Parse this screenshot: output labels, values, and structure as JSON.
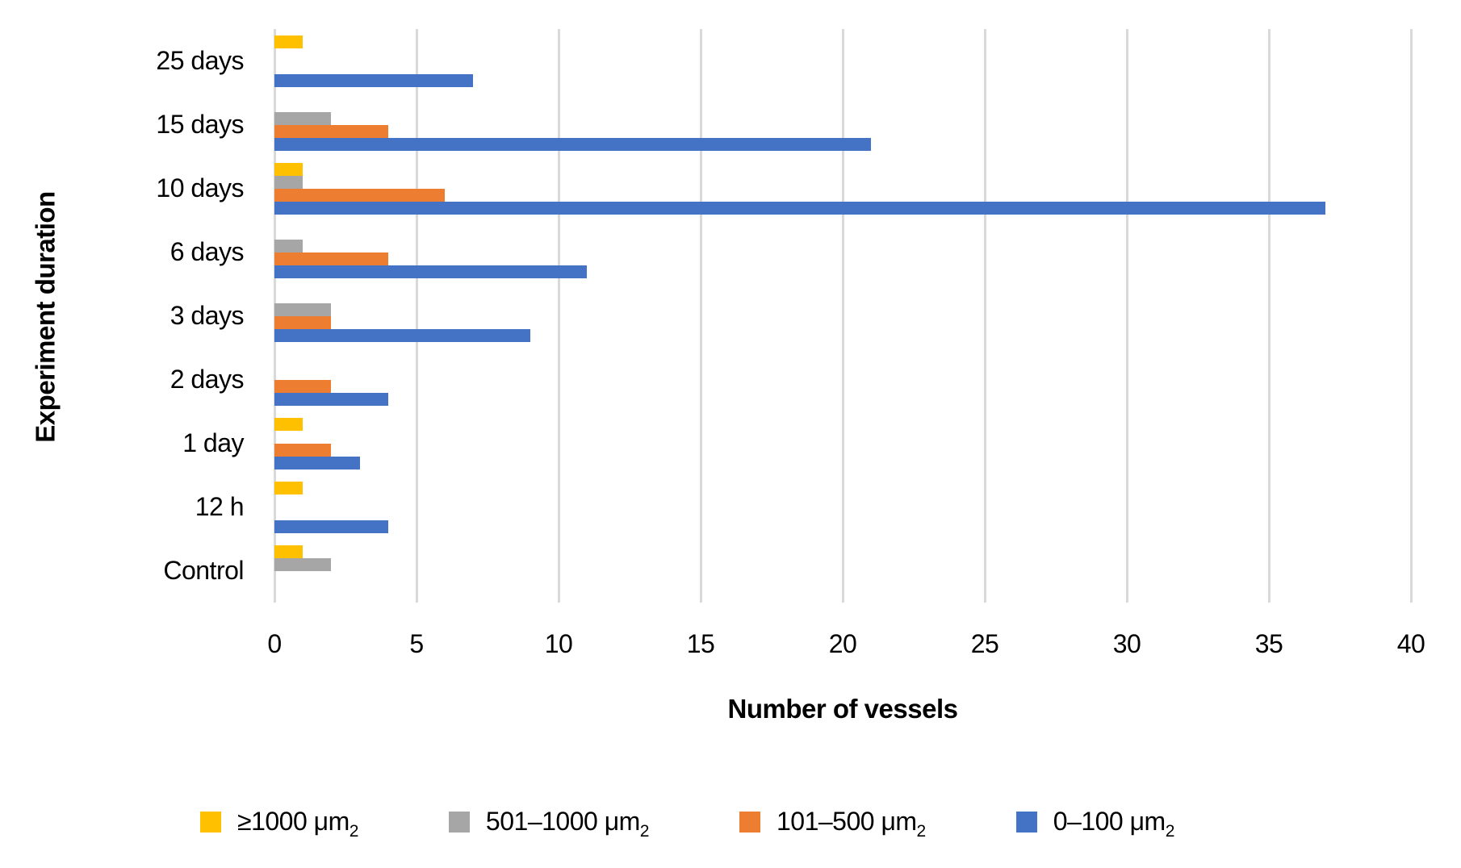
{
  "chart_data": {
    "type": "bar",
    "orientation": "horizontal",
    "title": "",
    "xlabel": "Number of vessels",
    "ylabel": "Experiment duration",
    "xlim": [
      0,
      40
    ],
    "x_ticks": [
      0,
      5,
      10,
      15,
      20,
      25,
      30,
      35,
      40
    ],
    "grid": "vertical",
    "gridline_color": "#D9D9D9",
    "background_color": "#FFFFFF",
    "text_color": "#000000",
    "legend_position": "bottom",
    "categories": [
      "25 days",
      "15 days",
      "10 days",
      "6 days",
      "3 days",
      "2 days",
      "1 day",
      "12 h",
      "Control"
    ],
    "series": [
      {
        "name": "≥1000 μm",
        "name_sub": "2",
        "color": "#FFC000",
        "values": [
          1,
          0,
          1,
          0,
          0,
          0,
          1,
          1,
          1
        ]
      },
      {
        "name": "501–1000 μm",
        "name_sub": "2",
        "color": "#A6A6A6",
        "values": [
          0,
          2,
          1,
          1,
          2,
          0,
          0,
          0,
          2
        ]
      },
      {
        "name": "101–500 μm",
        "name_sub": "2",
        "color": "#ED7D31",
        "values": [
          0,
          4,
          6,
          4,
          2,
          2,
          2,
          0,
          0
        ]
      },
      {
        "name": "0–100 μm",
        "name_sub": "2",
        "color": "#4472C4",
        "values": [
          7,
          21,
          37,
          11,
          9,
          4,
          3,
          4,
          0
        ]
      }
    ]
  }
}
